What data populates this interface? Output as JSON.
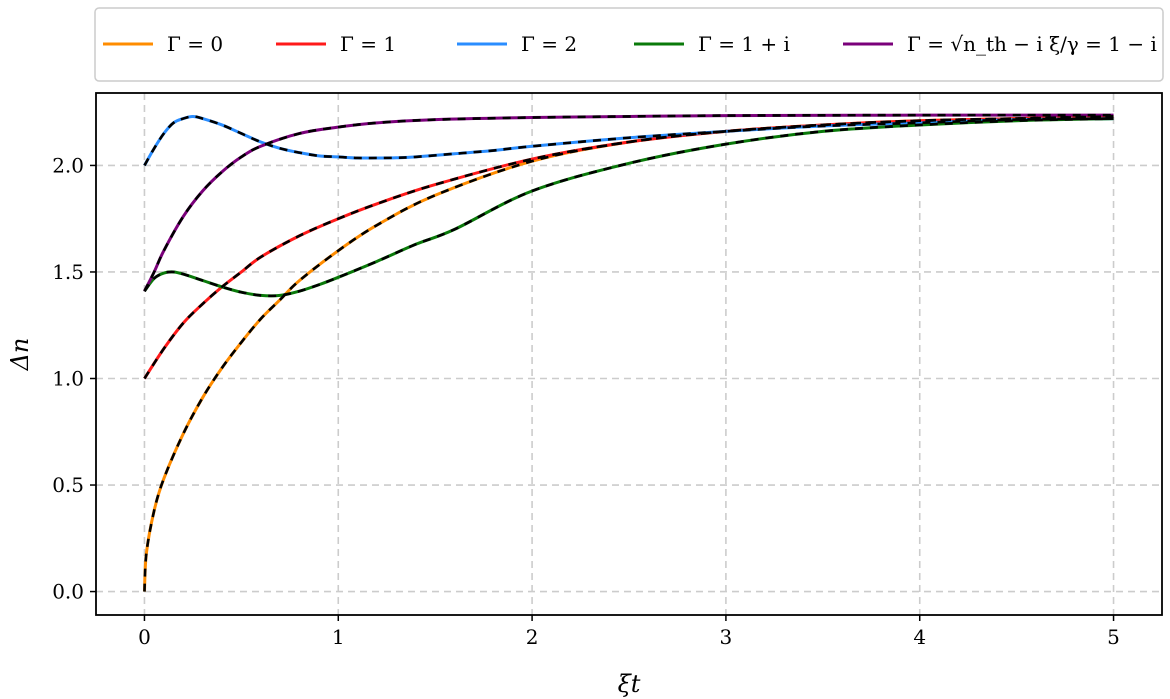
{
  "chart_data": {
    "type": "line",
    "xlabel": "ξt",
    "ylabel": "Δn",
    "xlim": [
      -0.25,
      5.25
    ],
    "ylim": [
      -0.11,
      2.34
    ],
    "x_ticks": [
      0,
      1,
      2,
      3,
      4,
      5
    ],
    "x_tick_labels": [
      "0",
      "1",
      "2",
      "3",
      "4",
      "5"
    ],
    "y_ticks": [
      0.0,
      0.5,
      1.0,
      1.5,
      2.0
    ],
    "y_tick_labels": [
      "0.0",
      "0.5",
      "1.0",
      "1.5",
      "2.0"
    ],
    "grid": true,
    "legend_position": "top",
    "overlay_style": "black dashed analytic curve over each series",
    "series": [
      {
        "name": "Γ = 0",
        "color": "#ff8c00",
        "x": [
          0,
          0.01,
          0.05,
          0.1,
          0.2,
          0.3,
          0.4,
          0.5,
          0.6,
          0.7,
          0.8,
          1.0,
          1.2,
          1.5,
          2.0,
          2.5,
          3.0,
          3.5,
          4.0,
          4.5,
          5.0
        ],
        "y": [
          0,
          0.18,
          0.38,
          0.53,
          0.74,
          0.91,
          1.05,
          1.17,
          1.28,
          1.37,
          1.46,
          1.6,
          1.72,
          1.86,
          2.02,
          2.11,
          2.16,
          2.19,
          2.21,
          2.22,
          2.23
        ]
      },
      {
        "name": "Γ = 1",
        "color": "#ff1a1a",
        "x": [
          0,
          0.1,
          0.2,
          0.3,
          0.4,
          0.5,
          0.6,
          0.8,
          1.0,
          1.2,
          1.5,
          2.0,
          2.5,
          3.0,
          3.5,
          4.0,
          4.5,
          5.0
        ],
        "y": [
          1.0,
          1.14,
          1.26,
          1.35,
          1.43,
          1.5,
          1.57,
          1.67,
          1.75,
          1.82,
          1.91,
          2.03,
          2.11,
          2.16,
          2.19,
          2.21,
          2.22,
          2.23
        ]
      },
      {
        "name": "Γ = 2",
        "color": "#2a8dff",
        "x": [
          0,
          0.05,
          0.1,
          0.15,
          0.2,
          0.25,
          0.3,
          0.4,
          0.5,
          0.6,
          0.7,
          0.8,
          0.9,
          1.0,
          1.1,
          1.2,
          1.3,
          1.4,
          1.6,
          1.8,
          2.0,
          2.5,
          3.0,
          3.5,
          4.0,
          4.5,
          5.0
        ],
        "y": [
          2.0,
          2.08,
          2.15,
          2.2,
          2.22,
          2.23,
          2.22,
          2.19,
          2.15,
          2.11,
          2.08,
          2.06,
          2.045,
          2.04,
          2.035,
          2.035,
          2.036,
          2.04,
          2.055,
          2.07,
          2.09,
          2.13,
          2.16,
          2.185,
          2.2,
          2.215,
          2.22
        ]
      },
      {
        "name": "Γ = 1 + i",
        "color": "#0a7a0a",
        "x": [
          0,
          0.05,
          0.1,
          0.15,
          0.2,
          0.3,
          0.4,
          0.5,
          0.6,
          0.7,
          0.8,
          0.9,
          1.0,
          1.2,
          1.4,
          1.6,
          2.0,
          2.5,
          3.0,
          3.5,
          4.0,
          4.5,
          5.0
        ],
        "y": [
          1.41,
          1.47,
          1.495,
          1.5,
          1.49,
          1.46,
          1.43,
          1.405,
          1.39,
          1.39,
          1.41,
          1.44,
          1.475,
          1.55,
          1.63,
          1.7,
          1.88,
          2.01,
          2.1,
          2.16,
          2.19,
          2.21,
          2.22
        ]
      },
      {
        "name": "Γ = √n_th − i ξ/γ = 1 − i",
        "color": "#7a007a",
        "x": [
          0,
          0.05,
          0.1,
          0.2,
          0.3,
          0.4,
          0.5,
          0.6,
          0.8,
          1.0,
          1.2,
          1.5,
          2.0,
          2.5,
          3.0,
          4.0,
          5.0
        ],
        "y": [
          1.41,
          1.5,
          1.6,
          1.76,
          1.88,
          1.97,
          2.04,
          2.09,
          2.15,
          2.18,
          2.2,
          2.215,
          2.225,
          2.23,
          2.234,
          2.236,
          2.236
        ]
      }
    ]
  }
}
